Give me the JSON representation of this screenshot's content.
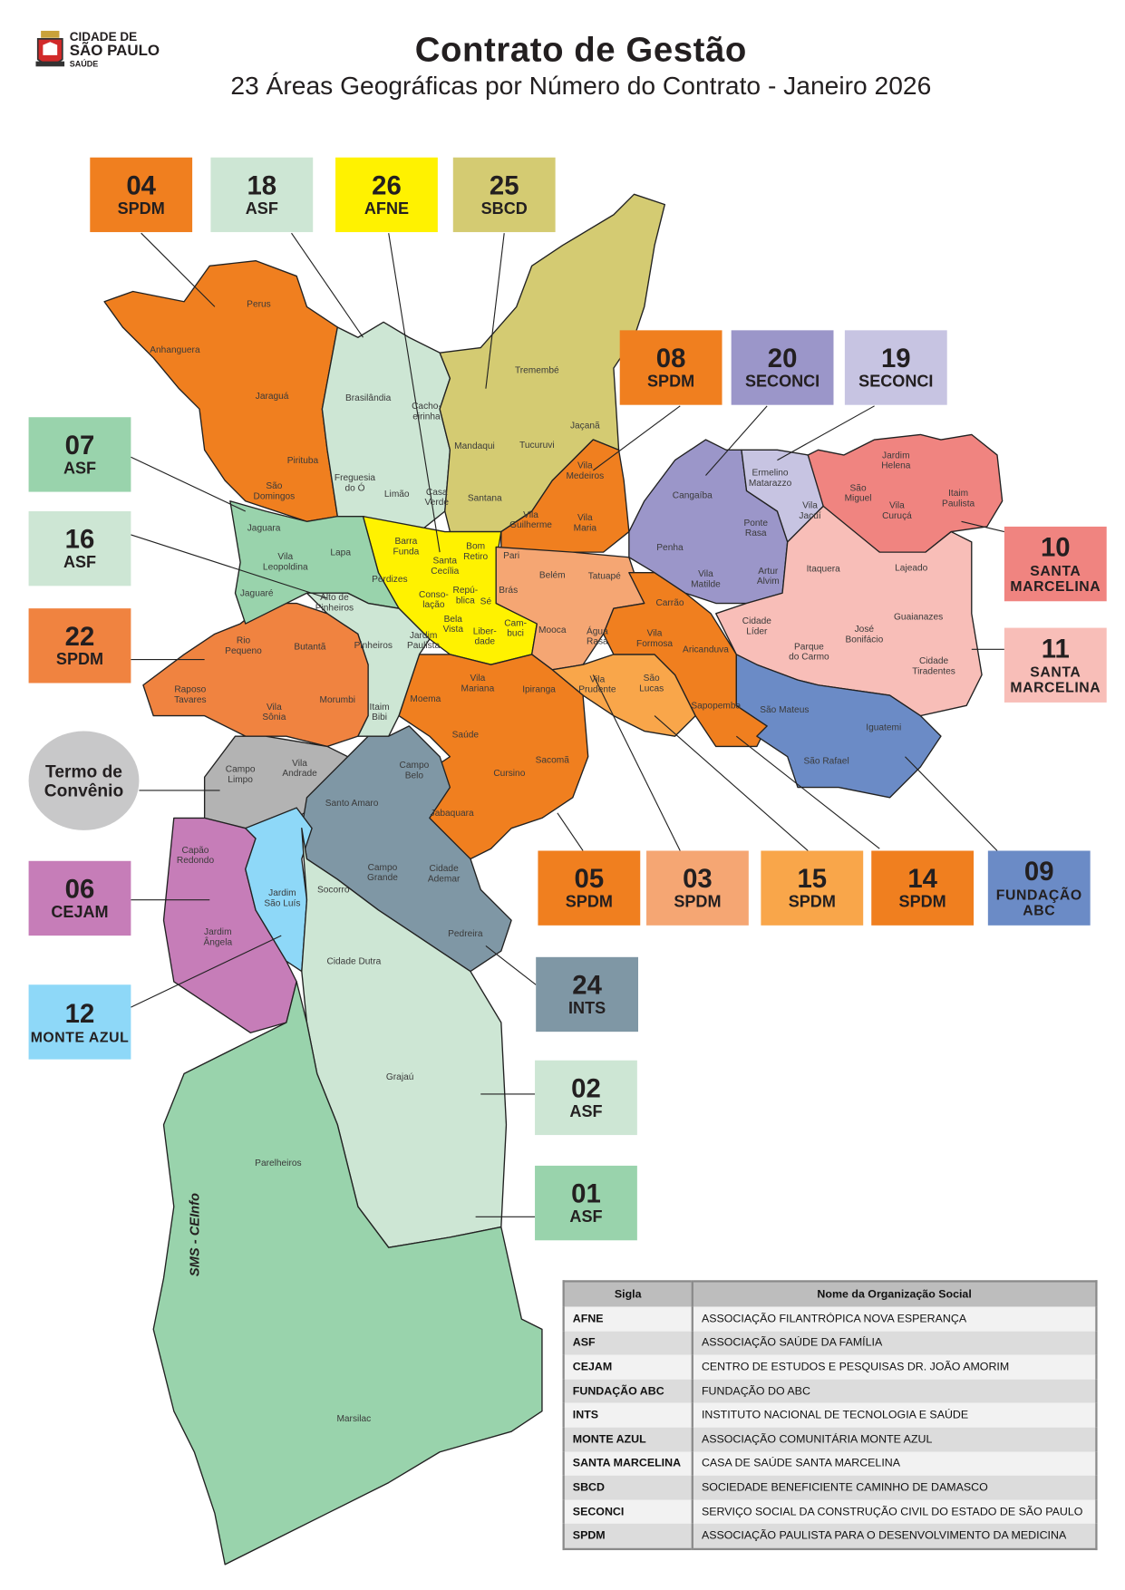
{
  "header": {
    "title": "Contrato de Gestão",
    "subtitle": "23 Áreas Geográficas por Número do Contrato - Janeiro 2026",
    "logo": {
      "line1": "CIDADE DE",
      "line2": "SÃO PAULO",
      "line3": "SAÚDE"
    }
  },
  "areas": [
    {
      "number": "04",
      "org": "SPDM",
      "color": "#F07F1F"
    },
    {
      "number": "18",
      "org": "ASF",
      "color": "#CDE6D4"
    },
    {
      "number": "26",
      "org": "AFNE",
      "color": "#FFF200"
    },
    {
      "number": "25",
      "org": "SBCD",
      "color": "#D4CB72"
    },
    {
      "number": "08",
      "org": "SPDM",
      "color": "#F07F1F"
    },
    {
      "number": "20",
      "org": "SECONCI",
      "color": "#9B96C9"
    },
    {
      "number": "19",
      "org": "SECONCI",
      "color": "#C7C4E2"
    },
    {
      "number": "07",
      "org": "ASF",
      "color": "#99D3AC"
    },
    {
      "number": "16",
      "org": "ASF",
      "color": "#CDE6D4"
    },
    {
      "number": "22",
      "org": "SPDM",
      "color": "#F08340"
    },
    {
      "number": "06",
      "org": "CEJAM",
      "color": "#C67DB8"
    },
    {
      "number": "12",
      "org": "MONTE AZUL",
      "color": "#8ED8F8"
    },
    {
      "number": "10",
      "org": "SANTA MARCELINA",
      "color": "#F08480"
    },
    {
      "number": "11",
      "org": "SANTA MARCELINA",
      "color": "#F8BEB8"
    },
    {
      "number": "05",
      "org": "SPDM",
      "color": "#F07F1F"
    },
    {
      "number": "03",
      "org": "SPDM",
      "color": "#F5A673"
    },
    {
      "number": "15",
      "org": "SPDM",
      "color": "#F9A64A"
    },
    {
      "number": "14",
      "org": "SPDM",
      "color": "#F07F1F"
    },
    {
      "number": "09",
      "org": "FUNDAÇÃO ABC",
      "color": "#6B8BC6"
    },
    {
      "number": "24",
      "org": "INTS",
      "color": "#7F97A5"
    },
    {
      "number": "02",
      "org": "ASF",
      "color": "#CDE6D4"
    },
    {
      "number": "01",
      "org": "ASF",
      "color": "#99D3AC"
    }
  ],
  "termo": {
    "label": "Termo de\nConvênio",
    "color": "#C8C8C9",
    "region_color": "#B3B3B3"
  },
  "districts": [
    "Perus",
    "Anhanguera",
    "Jaraguá",
    "Pirituba",
    "São\nDomingos",
    "Jaguara",
    "Brasilândia",
    "Cacho-\neirinha",
    "Freguesia\ndo Ó",
    "Limão",
    "Casa\nVerde",
    "Mandaqui",
    "Tucuruvi",
    "Santana",
    "Tremembé",
    "Jaçanã",
    "Vila\nMedeiros",
    "Vila\nGuilherme",
    "Vila\nMaria",
    "Lapa",
    "Vila\nLeopoldina",
    "Jaguaré",
    "Perdizes",
    "Alto de\nPinheiros",
    "Barra\nFunda",
    "Santa\nCecília",
    "Bom\nRetiro",
    "Pari",
    "Belém",
    "Tatuapé",
    "Brás",
    "Conso-\nlação",
    "Repú-\nblica",
    "Sé",
    "Bela\nVista",
    "Liber-\ndade",
    "Cam-\nbuci",
    "Mooca",
    "Água\nRasa",
    "Pinheiros",
    "Jardim\nPaulista",
    "Rio\nPequeno",
    "Butantã",
    "Raposo\nTavares",
    "Vila\nSônia",
    "Morumbi",
    "Itaim\nBibi",
    "Moema",
    "Vila\nMariana",
    "Saúde",
    "Ipiranga",
    "Cursino",
    "Sacomã",
    "Campo\nBelo",
    "Jabaquara",
    "Vila\nPrudente",
    "São\nLucas",
    "Vila\nFormosa",
    "Carrão",
    "Aricanduva",
    "Sapopemba",
    "Cangaíba",
    "Penha",
    "Vila\nMatilde",
    "Artur\nAlvim",
    "Ermelino\nMatarazzo",
    "Ponte\nRasa",
    "Vila\nJacuí",
    "São\nMiguel",
    "Vila\nCuruçá",
    "Jardim\nHelena",
    "Itaim\nPaulista",
    "Itaquera",
    "Lajeado",
    "Guaianazes",
    "José\nBonifácio",
    "Cidade\nLíder",
    "Parque\ndo Carmo",
    "Cidade\nTiradentes",
    "São Mateus",
    "Iguatemi",
    "São Rafael",
    "Campo\nLimpo",
    "Vila\nAndrade",
    "Santo Amaro",
    "Capão\nRedondo",
    "Jardim\nSão Luís",
    "Socorro",
    "Campo\nGrande",
    "Cidade\nAdemar",
    "Pedreira",
    "Jardim\nÂngela",
    "Cidade Dutra",
    "Grajaú",
    "Parelheiros",
    "Marsilac"
  ],
  "credit": "SMS - CEInfo",
  "legend_table": {
    "headers": [
      "Sigla",
      "Nome da Organização Social"
    ],
    "rows": [
      [
        "AFNE",
        "ASSOCIAÇÃO FILANTRÓPICA NOVA ESPERANÇA"
      ],
      [
        "ASF",
        "ASSOCIAÇÃO SAÚDE DA FAMÍLIA"
      ],
      [
        "CEJAM",
        "CENTRO DE ESTUDOS E PESQUISAS DR. JOÃO AMORIM"
      ],
      [
        "FUNDAÇÃO ABC",
        "FUNDAÇÃO DO ABC"
      ],
      [
        "INTS",
        "INSTITUTO NACIONAL DE TECNOLOGIA E SAÚDE"
      ],
      [
        "MONTE AZUL",
        "ASSOCIAÇÃO COMUNITÁRIA MONTE AZUL"
      ],
      [
        "SANTA MARCELINA",
        "CASA DE SAÚDE SANTA MARCELINA"
      ],
      [
        "SBCD",
        "SOCIEDADE BENEFICIENTE CAMINHO DE DAMASCO"
      ],
      [
        "SECONCI",
        "SERVIÇO SOCIAL DA CONSTRUÇÃO CIVIL DO ESTADO DE SÃO PAULO"
      ],
      [
        "SPDM",
        "ASSOCIAÇÃO PAULISTA PARA O DESENVOLVIMENTO DA MEDICINA"
      ]
    ]
  }
}
